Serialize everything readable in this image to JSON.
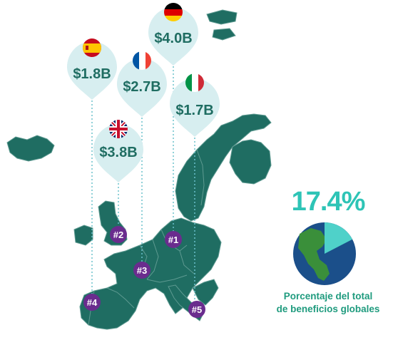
{
  "colors": {
    "map_land": "#1f6d62",
    "map_border": "#5e9a91",
    "pin_fill": "#d7eef0",
    "pin_text": "#1f6d62",
    "dotted_line": "#6cc2cc",
    "badge": "#6a2c8e",
    "percent_text": "#2ec4b6",
    "caption_text": "#1f9b7e",
    "globe_ocean": "#1b4f8a",
    "globe_land": "#3a8f3a",
    "globe_highlight": "#4fd1c9"
  },
  "pins": [
    {
      "country": "Germany",
      "value": "$4.0B",
      "flag_icon": "germany-flag-icon"
    },
    {
      "country": "Spain",
      "value": "$1.8B",
      "flag_icon": "spain-flag-icon"
    },
    {
      "country": "France",
      "value": "$2.7B",
      "flag_icon": "france-flag-icon"
    },
    {
      "country": "Italy",
      "value": "$1.7B",
      "flag_icon": "italy-flag-icon"
    },
    {
      "country": "United Kingdom",
      "value": "$3.8B",
      "flag_icon": "uk-flag-icon"
    }
  ],
  "ranks": [
    {
      "label": "#1"
    },
    {
      "label": "#2"
    },
    {
      "label": "#3"
    },
    {
      "label": "#4"
    },
    {
      "label": "#5"
    }
  ],
  "share": {
    "percent_text": "17.4%",
    "fraction": 0.174,
    "caption_line1": "Porcentaje del total",
    "caption_line2": "de beneficios globales"
  }
}
